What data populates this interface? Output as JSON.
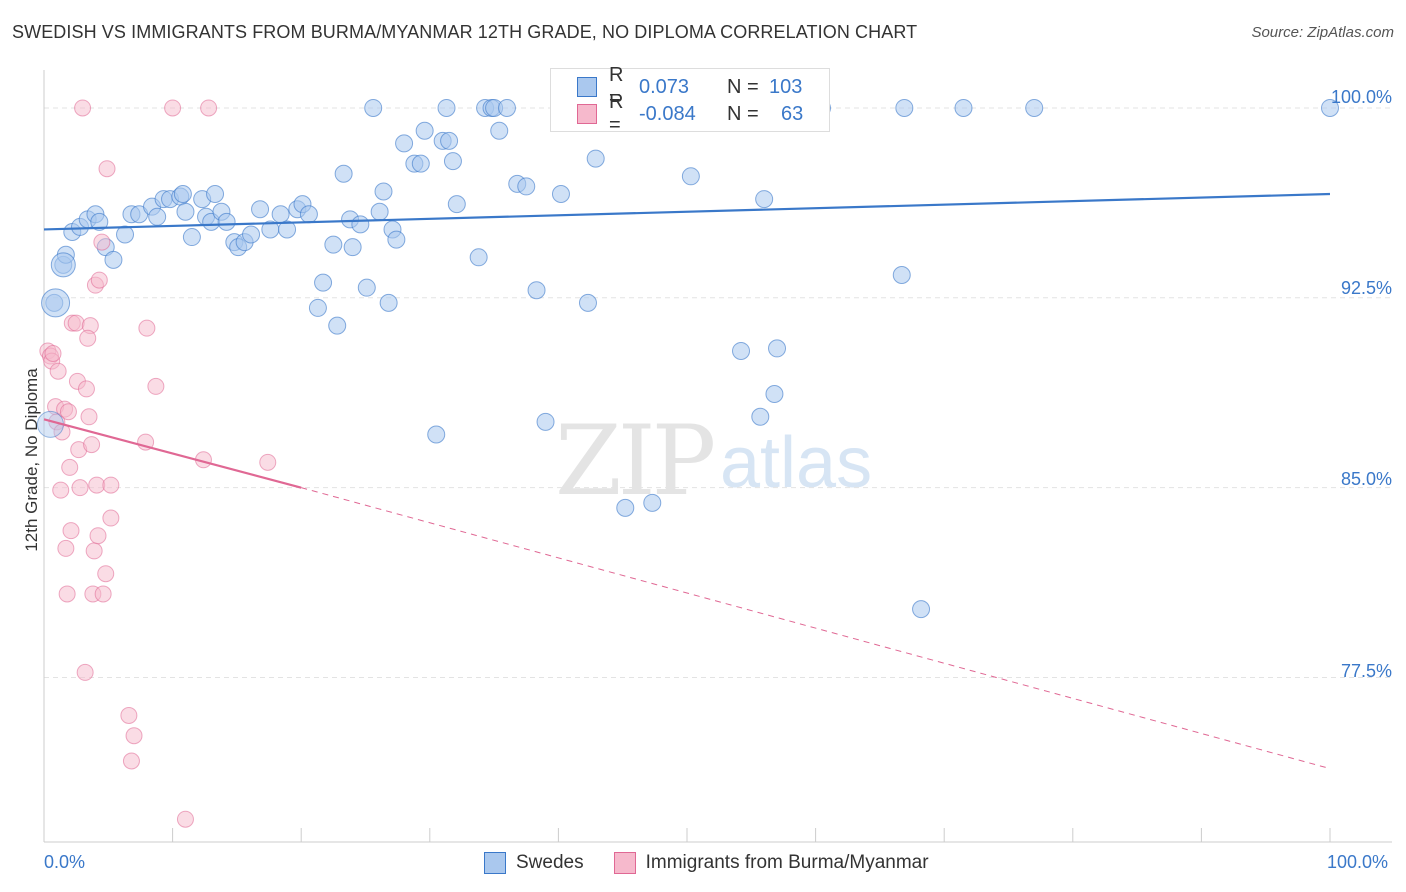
{
  "title": "SWEDISH VS IMMIGRANTS FROM BURMA/MYANMAR 12TH GRADE, NO DIPLOMA CORRELATION CHART",
  "source": "Source: ZipAtlas.com",
  "watermark": {
    "zip": "ZIP",
    "atlas": "atlas"
  },
  "colors": {
    "blue": "#3a78c9",
    "blue_fill": "#aac8ee",
    "pink": "#e06894",
    "pink_fill": "#f6b9cc",
    "grid": "#e3e3e3"
  },
  "legend": {
    "rows": [
      {
        "r_label": "R =",
        "r_value": "0.073",
        "n_label": "N =",
        "n_value": "103"
      },
      {
        "r_label": "R =",
        "r_value": "-0.084",
        "n_label": "N =",
        "n_value": "63"
      }
    ]
  },
  "bottom_legend": [
    "Swedes",
    "Immigrants from Burma/Myanmar"
  ],
  "chart_data": {
    "type": "scatter",
    "xlabel": "",
    "ylabel": "12th Grade, No Diploma",
    "xlim": [
      0,
      100
    ],
    "ylim": [
      71,
      101.5
    ],
    "x_tick_labels": [
      "0.0%",
      "100.0%"
    ],
    "y_ticks": [
      77.5,
      85.0,
      92.5,
      100.0
    ],
    "y_tick_labels": [
      "77.5%",
      "85.0%",
      "92.5%",
      "100.0%"
    ],
    "grid": true,
    "legend_position": "top-center",
    "series": [
      {
        "name": "Swedes",
        "color": "#3a78c9",
        "trend": {
          "x": [
            0,
            100
          ],
          "y": [
            95.2,
            96.6
          ]
        },
        "points": [
          [
            0.8,
            92.3
          ],
          [
            1.5,
            93.8
          ],
          [
            1.7,
            94.2
          ],
          [
            2.2,
            95.1
          ],
          [
            2.8,
            95.3
          ],
          [
            3.4,
            95.6
          ],
          [
            4.0,
            95.8
          ],
          [
            4.3,
            95.5
          ],
          [
            4.8,
            94.5
          ],
          [
            5.4,
            94.0
          ],
          [
            6.3,
            95.0
          ],
          [
            6.8,
            95.8
          ],
          [
            7.4,
            95.8
          ],
          [
            8.4,
            96.1
          ],
          [
            8.8,
            95.7
          ],
          [
            9.3,
            96.4
          ],
          [
            9.8,
            96.4
          ],
          [
            10.6,
            96.5
          ],
          [
            10.8,
            96.6
          ],
          [
            11.0,
            95.9
          ],
          [
            11.5,
            94.9
          ],
          [
            12.3,
            96.4
          ],
          [
            12.6,
            95.7
          ],
          [
            13.0,
            95.5
          ],
          [
            13.3,
            96.6
          ],
          [
            13.8,
            95.9
          ],
          [
            14.2,
            95.5
          ],
          [
            14.8,
            94.7
          ],
          [
            15.1,
            94.5
          ],
          [
            15.6,
            94.7
          ],
          [
            16.1,
            95.0
          ],
          [
            16.8,
            96.0
          ],
          [
            17.6,
            95.2
          ],
          [
            18.4,
            95.8
          ],
          [
            18.9,
            95.2
          ],
          [
            19.7,
            96.0
          ],
          [
            20.1,
            96.2
          ],
          [
            20.6,
            95.8
          ],
          [
            21.3,
            92.1
          ],
          [
            21.7,
            93.1
          ],
          [
            22.5,
            94.6
          ],
          [
            22.8,
            91.4
          ],
          [
            23.3,
            97.4
          ],
          [
            23.8,
            95.6
          ],
          [
            24.0,
            94.5
          ],
          [
            24.6,
            95.4
          ],
          [
            25.1,
            92.9
          ],
          [
            25.6,
            100.0
          ],
          [
            26.1,
            95.9
          ],
          [
            26.4,
            96.7
          ],
          [
            26.8,
            92.3
          ],
          [
            27.1,
            95.2
          ],
          [
            27.4,
            94.8
          ],
          [
            28.0,
            98.6
          ],
          [
            28.8,
            97.8
          ],
          [
            29.3,
            97.8
          ],
          [
            29.6,
            99.1
          ],
          [
            30.5,
            87.1
          ],
          [
            31.0,
            98.7
          ],
          [
            31.5,
            98.7
          ],
          [
            31.8,
            97.9
          ],
          [
            31.3,
            100.0
          ],
          [
            32.1,
            96.2
          ],
          [
            33.8,
            94.1
          ],
          [
            34.3,
            100.0
          ],
          [
            34.8,
            100.0
          ],
          [
            35.0,
            100.0
          ],
          [
            35.4,
            99.1
          ],
          [
            36.0,
            100.0
          ],
          [
            36.8,
            97.0
          ],
          [
            37.5,
            96.9
          ],
          [
            38.3,
            92.8
          ],
          [
            39.0,
            87.6
          ],
          [
            40.2,
            96.6
          ],
          [
            41.0,
            100.0
          ],
          [
            42.2,
            100.0
          ],
          [
            42.3,
            92.3
          ],
          [
            42.9,
            98.0
          ],
          [
            45.0,
            100.0
          ],
          [
            45.2,
            84.2
          ],
          [
            47.3,
            84.4
          ],
          [
            50.0,
            100.0
          ],
          [
            50.3,
            97.3
          ],
          [
            53.5,
            100.0
          ],
          [
            54.2,
            90.4
          ],
          [
            55.7,
            87.8
          ],
          [
            56.0,
            96.4
          ],
          [
            56.8,
            88.7
          ],
          [
            57.0,
            90.5
          ],
          [
            60.0,
            100.0
          ],
          [
            60.5,
            100.0
          ],
          [
            66.9,
            100.0
          ],
          [
            66.7,
            93.4
          ],
          [
            68.2,
            80.2
          ],
          [
            71.5,
            100.0
          ],
          [
            77.0,
            100.0
          ],
          [
            100.0,
            100.0
          ]
        ]
      },
      {
        "name": "Immigrants from Burma/Myanmar",
        "color": "#e06894",
        "trend": {
          "x": [
            0,
            20
          ],
          "y": [
            87.7,
            85.0
          ]
        },
        "trend_dashed": {
          "x": [
            20,
            100
          ],
          "y": [
            85.0,
            73.9
          ]
        },
        "points": [
          [
            0.3,
            90.4
          ],
          [
            0.5,
            90.2
          ],
          [
            0.6,
            90.0
          ],
          [
            0.7,
            90.3
          ],
          [
            0.9,
            88.2
          ],
          [
            1.0,
            87.6
          ],
          [
            1.1,
            89.6
          ],
          [
            1.3,
            84.9
          ],
          [
            1.4,
            87.2
          ],
          [
            1.6,
            88.1
          ],
          [
            1.7,
            82.6
          ],
          [
            1.8,
            80.8
          ],
          [
            1.9,
            88.0
          ],
          [
            2.0,
            85.8
          ],
          [
            2.1,
            83.3
          ],
          [
            2.2,
            91.5
          ],
          [
            2.5,
            91.5
          ],
          [
            2.6,
            89.2
          ],
          [
            2.7,
            86.5
          ],
          [
            2.8,
            85.0
          ],
          [
            3.2,
            77.7
          ],
          [
            3.3,
            88.9
          ],
          [
            3.6,
            91.4
          ],
          [
            3.4,
            90.9
          ],
          [
            3.5,
            87.8
          ],
          [
            3.7,
            86.7
          ],
          [
            3.8,
            80.8
          ],
          [
            3.9,
            82.5
          ],
          [
            4.0,
            93.0
          ],
          [
            4.1,
            85.1
          ],
          [
            4.3,
            93.2
          ],
          [
            4.2,
            83.1
          ],
          [
            4.5,
            94.7
          ],
          [
            4.6,
            80.8
          ],
          [
            4.8,
            81.6
          ],
          [
            4.9,
            97.6
          ],
          [
            5.2,
            85.1
          ],
          [
            5.2,
            83.8
          ],
          [
            3.0,
            100.0
          ],
          [
            6.6,
            76.0
          ],
          [
            6.8,
            74.2
          ],
          [
            7.0,
            75.2
          ],
          [
            7.9,
            86.8
          ],
          [
            8.0,
            91.3
          ],
          [
            8.7,
            89.0
          ],
          [
            10.0,
            100.0
          ],
          [
            11.0,
            71.9
          ],
          [
            12.4,
            86.1
          ],
          [
            12.8,
            100.0
          ],
          [
            17.4,
            86.0
          ]
        ]
      }
    ]
  }
}
